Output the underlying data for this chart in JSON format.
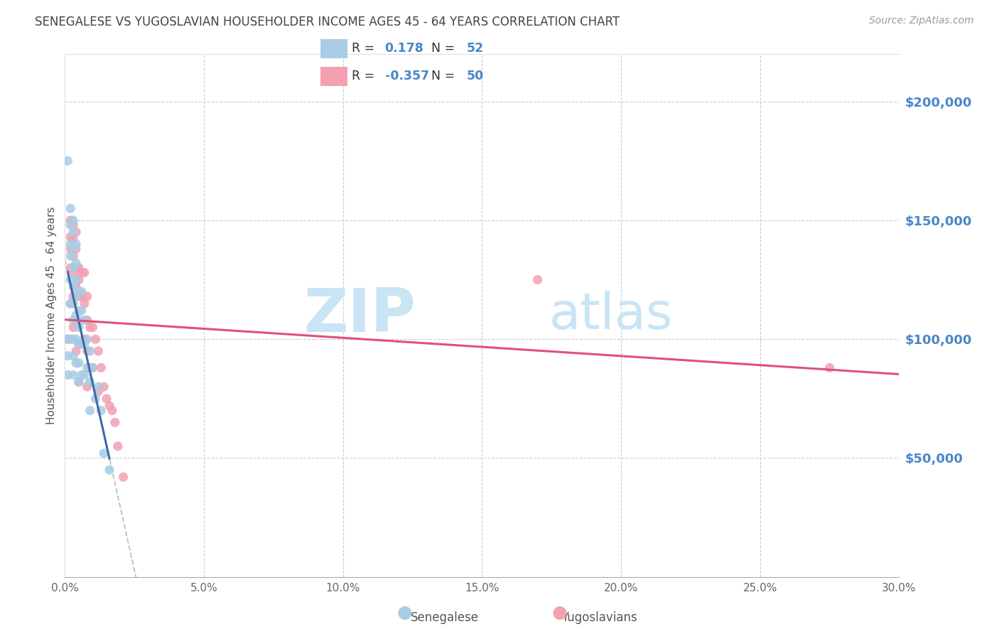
{
  "title": "SENEGALESE VS YUGOSLAVIAN HOUSEHOLDER INCOME AGES 45 - 64 YEARS CORRELATION CHART",
  "source": "Source: ZipAtlas.com",
  "ylabel": "Householder Income Ages 45 - 64 years",
  "xlim": [
    0.0,
    0.3
  ],
  "ylim": [
    0,
    220000
  ],
  "xticks": [
    0.0,
    0.05,
    0.1,
    0.15,
    0.2,
    0.25,
    0.3
  ],
  "xticklabels": [
    "0.0%",
    "5.0%",
    "10.0%",
    "15.0%",
    "20.0%",
    "25.0%",
    "30.0%"
  ],
  "yticks_right": [
    50000,
    100000,
    150000,
    200000
  ],
  "ytick_labels_right": [
    "$50,000",
    "$100,000",
    "$150,000",
    "$200,000"
  ],
  "sen_color": "#a8cce4",
  "yug_color": "#f4a0b0",
  "sen_line_color": "#3a6aaa",
  "yug_line_color": "#e0507a",
  "dashed_line_color": "#bbbbbb",
  "bg_color": "#ffffff",
  "grid_color": "#cccccc",
  "watermark_zip": "ZIP",
  "watermark_atlas": "atlas",
  "watermark_color": "#c8e4f5",
  "right_tick_color": "#4a86c8",
  "sen_R": "0.178",
  "sen_N": "52",
  "yug_R": "-0.357",
  "yug_N": "50",
  "sen_x": [
    0.001,
    0.001,
    0.001,
    0.001,
    0.002,
    0.002,
    0.002,
    0.002,
    0.002,
    0.002,
    0.002,
    0.003,
    0.003,
    0.003,
    0.003,
    0.003,
    0.003,
    0.003,
    0.003,
    0.003,
    0.003,
    0.004,
    0.004,
    0.004,
    0.004,
    0.004,
    0.004,
    0.004,
    0.005,
    0.005,
    0.005,
    0.005,
    0.005,
    0.005,
    0.006,
    0.006,
    0.006,
    0.006,
    0.007,
    0.007,
    0.007,
    0.008,
    0.008,
    0.009,
    0.009,
    0.009,
    0.01,
    0.011,
    0.012,
    0.013,
    0.014,
    0.016
  ],
  "sen_y": [
    175000,
    100000,
    93000,
    85000,
    155000,
    148000,
    140000,
    135000,
    125000,
    115000,
    100000,
    150000,
    145000,
    138000,
    130000,
    122000,
    115000,
    108000,
    100000,
    93000,
    85000,
    140000,
    132000,
    125000,
    118000,
    110000,
    100000,
    90000,
    120000,
    112000,
    105000,
    98000,
    90000,
    82000,
    120000,
    112000,
    98000,
    85000,
    108000,
    98000,
    85000,
    100000,
    88000,
    95000,
    82000,
    70000,
    88000,
    75000,
    80000,
    70000,
    52000,
    45000
  ],
  "yug_x": [
    0.001,
    0.002,
    0.002,
    0.002,
    0.002,
    0.002,
    0.003,
    0.003,
    0.003,
    0.003,
    0.003,
    0.003,
    0.004,
    0.004,
    0.004,
    0.004,
    0.004,
    0.005,
    0.005,
    0.005,
    0.005,
    0.005,
    0.005,
    0.006,
    0.006,
    0.006,
    0.007,
    0.007,
    0.007,
    0.008,
    0.008,
    0.008,
    0.008,
    0.009,
    0.009,
    0.01,
    0.01,
    0.011,
    0.012,
    0.012,
    0.013,
    0.014,
    0.015,
    0.016,
    0.017,
    0.018,
    0.019,
    0.021,
    0.17,
    0.275
  ],
  "yug_y": [
    100000,
    150000,
    143000,
    138000,
    130000,
    115000,
    148000,
    142000,
    135000,
    128000,
    118000,
    105000,
    145000,
    138000,
    130000,
    122000,
    95000,
    130000,
    125000,
    118000,
    108000,
    98000,
    82000,
    128000,
    118000,
    98000,
    128000,
    115000,
    100000,
    118000,
    108000,
    95000,
    80000,
    105000,
    88000,
    105000,
    88000,
    100000,
    95000,
    78000,
    88000,
    80000,
    75000,
    72000,
    70000,
    65000,
    55000,
    42000,
    125000,
    88000
  ]
}
